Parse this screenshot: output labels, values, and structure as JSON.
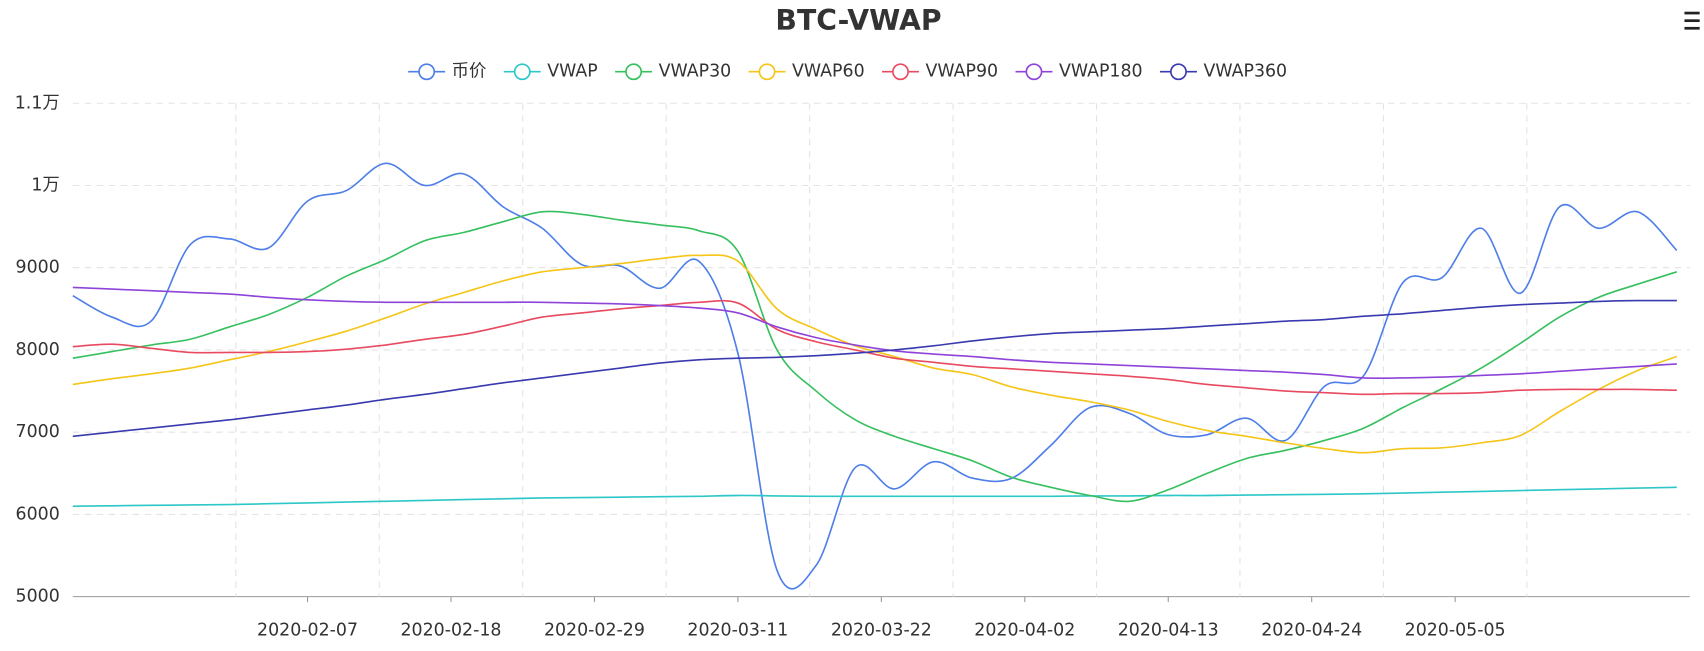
{
  "chart_data": {
    "type": "line",
    "title": "BTC-VWAP",
    "x": [
      "2020-01-20",
      "2020-01-23",
      "2020-01-26",
      "2020-01-29",
      "2020-02-01",
      "2020-02-04",
      "2020-02-07",
      "2020-02-10",
      "2020-02-13",
      "2020-02-16",
      "2020-02-19",
      "2020-02-22",
      "2020-02-25",
      "2020-02-28",
      "2020-03-02",
      "2020-03-05",
      "2020-03-08",
      "2020-03-11",
      "2020-03-14",
      "2020-03-17",
      "2020-03-20",
      "2020-03-23",
      "2020-03-26",
      "2020-03-29",
      "2020-04-01",
      "2020-04-04",
      "2020-04-07",
      "2020-04-10",
      "2020-04-13",
      "2020-04-16",
      "2020-04-19",
      "2020-04-22",
      "2020-04-25",
      "2020-04-28",
      "2020-05-01",
      "2020-05-04",
      "2020-05-07",
      "2020-05-10",
      "2020-05-13",
      "2020-05-16",
      "2020-05-19",
      "2020-05-22"
    ],
    "series": [
      {
        "name": "币价",
        "color": "#4e7ee8",
        "values": [
          8660,
          8400,
          8350,
          9280,
          9350,
          9240,
          9810,
          9940,
          10270,
          10000,
          10140,
          9740,
          9480,
          9040,
          9020,
          8750,
          9080,
          7960,
          5320,
          5380,
          6570,
          6310,
          6640,
          6440,
          6440,
          6840,
          7300,
          7230,
          6970,
          6970,
          7170,
          6900,
          7560,
          7690,
          8820,
          8880,
          9480,
          8690,
          9740,
          9480,
          9680,
          9210
        ]
      },
      {
        "name": "VWAP",
        "color": "#2ec7c9",
        "values": [
          6100,
          6105,
          6110,
          6115,
          6120,
          6130,
          6140,
          6150,
          6160,
          6170,
          6180,
          6190,
          6200,
          6205,
          6210,
          6215,
          6220,
          6230,
          6225,
          6220,
          6220,
          6220,
          6220,
          6220,
          6220,
          6220,
          6225,
          6225,
          6230,
          6230,
          6235,
          6240,
          6245,
          6250,
          6260,
          6270,
          6280,
          6290,
          6300,
          6310,
          6320,
          6330
        ]
      },
      {
        "name": "VWAP30",
        "color": "#36c05f",
        "values": [
          7900,
          7980,
          8060,
          8130,
          8280,
          8430,
          8640,
          8900,
          9100,
          9330,
          9430,
          9560,
          9680,
          9650,
          9580,
          9520,
          9450,
          9200,
          8000,
          7500,
          7150,
          6950,
          6800,
          6650,
          6450,
          6330,
          6230,
          6160,
          6300,
          6500,
          6680,
          6780,
          6900,
          7050,
          7300,
          7530,
          7780,
          8080,
          8400,
          8640,
          8800,
          8950
        ]
      },
      {
        "name": "VWAP60",
        "color": "#f5c518",
        "values": [
          7580,
          7650,
          7710,
          7780,
          7880,
          7980,
          8100,
          8230,
          8390,
          8560,
          8700,
          8840,
          8950,
          9000,
          9050,
          9110,
          9150,
          9080,
          8500,
          8250,
          8050,
          7920,
          7780,
          7700,
          7550,
          7450,
          7370,
          7270,
          7130,
          7020,
          6950,
          6870,
          6800,
          6750,
          6800,
          6810,
          6870,
          6960,
          7250,
          7520,
          7750,
          7920
        ]
      },
      {
        "name": "VWAP90",
        "color": "#e84a5f",
        "values": [
          8040,
          8070,
          8020,
          7970,
          7970,
          7970,
          7980,
          8010,
          8060,
          8130,
          8190,
          8290,
          8400,
          8450,
          8500,
          8540,
          8580,
          8570,
          8250,
          8100,
          8000,
          7900,
          7850,
          7800,
          7770,
          7740,
          7710,
          7680,
          7640,
          7580,
          7540,
          7500,
          7480,
          7460,
          7470,
          7470,
          7480,
          7510,
          7520,
          7520,
          7520,
          7510
        ]
      },
      {
        "name": "VWAP180",
        "color": "#8e44d8",
        "values": [
          8760,
          8740,
          8720,
          8700,
          8680,
          8640,
          8610,
          8590,
          8580,
          8580,
          8580,
          8580,
          8580,
          8570,
          8560,
          8540,
          8510,
          8450,
          8280,
          8150,
          8060,
          7990,
          7950,
          7920,
          7880,
          7850,
          7830,
          7810,
          7790,
          7770,
          7750,
          7730,
          7700,
          7660,
          7660,
          7670,
          7690,
          7710,
          7740,
          7770,
          7800,
          7830
        ]
      },
      {
        "name": "VWAP360",
        "color": "#3a3ab0",
        "values": [
          6950,
          7000,
          7050,
          7100,
          7150,
          7210,
          7270,
          7330,
          7400,
          7460,
          7530,
          7600,
          7660,
          7720,
          7780,
          7840,
          7880,
          7900,
          7910,
          7930,
          7960,
          8000,
          8050,
          8110,
          8160,
          8200,
          8220,
          8240,
          8260,
          8290,
          8320,
          8350,
          8370,
          8410,
          8440,
          8480,
          8520,
          8550,
          8570,
          8590,
          8600,
          8600
        ]
      }
    ],
    "xlim": [
      "2020-01-20",
      "2020-05-23"
    ],
    "xticks": [
      "2020-02-07",
      "2020-02-18",
      "2020-02-29",
      "2020-03-11",
      "2020-03-22",
      "2020-04-02",
      "2020-04-13",
      "2020-04-24",
      "2020-05-05"
    ],
    "ylim": [
      5000,
      11000
    ],
    "yticks": [
      5000,
      6000,
      7000,
      8000,
      9000,
      {
        "value": 10000,
        "label": "1万"
      },
      {
        "value": 11000,
        "label": "1.1万"
      }
    ],
    "grid": true,
    "legend": "top"
  }
}
